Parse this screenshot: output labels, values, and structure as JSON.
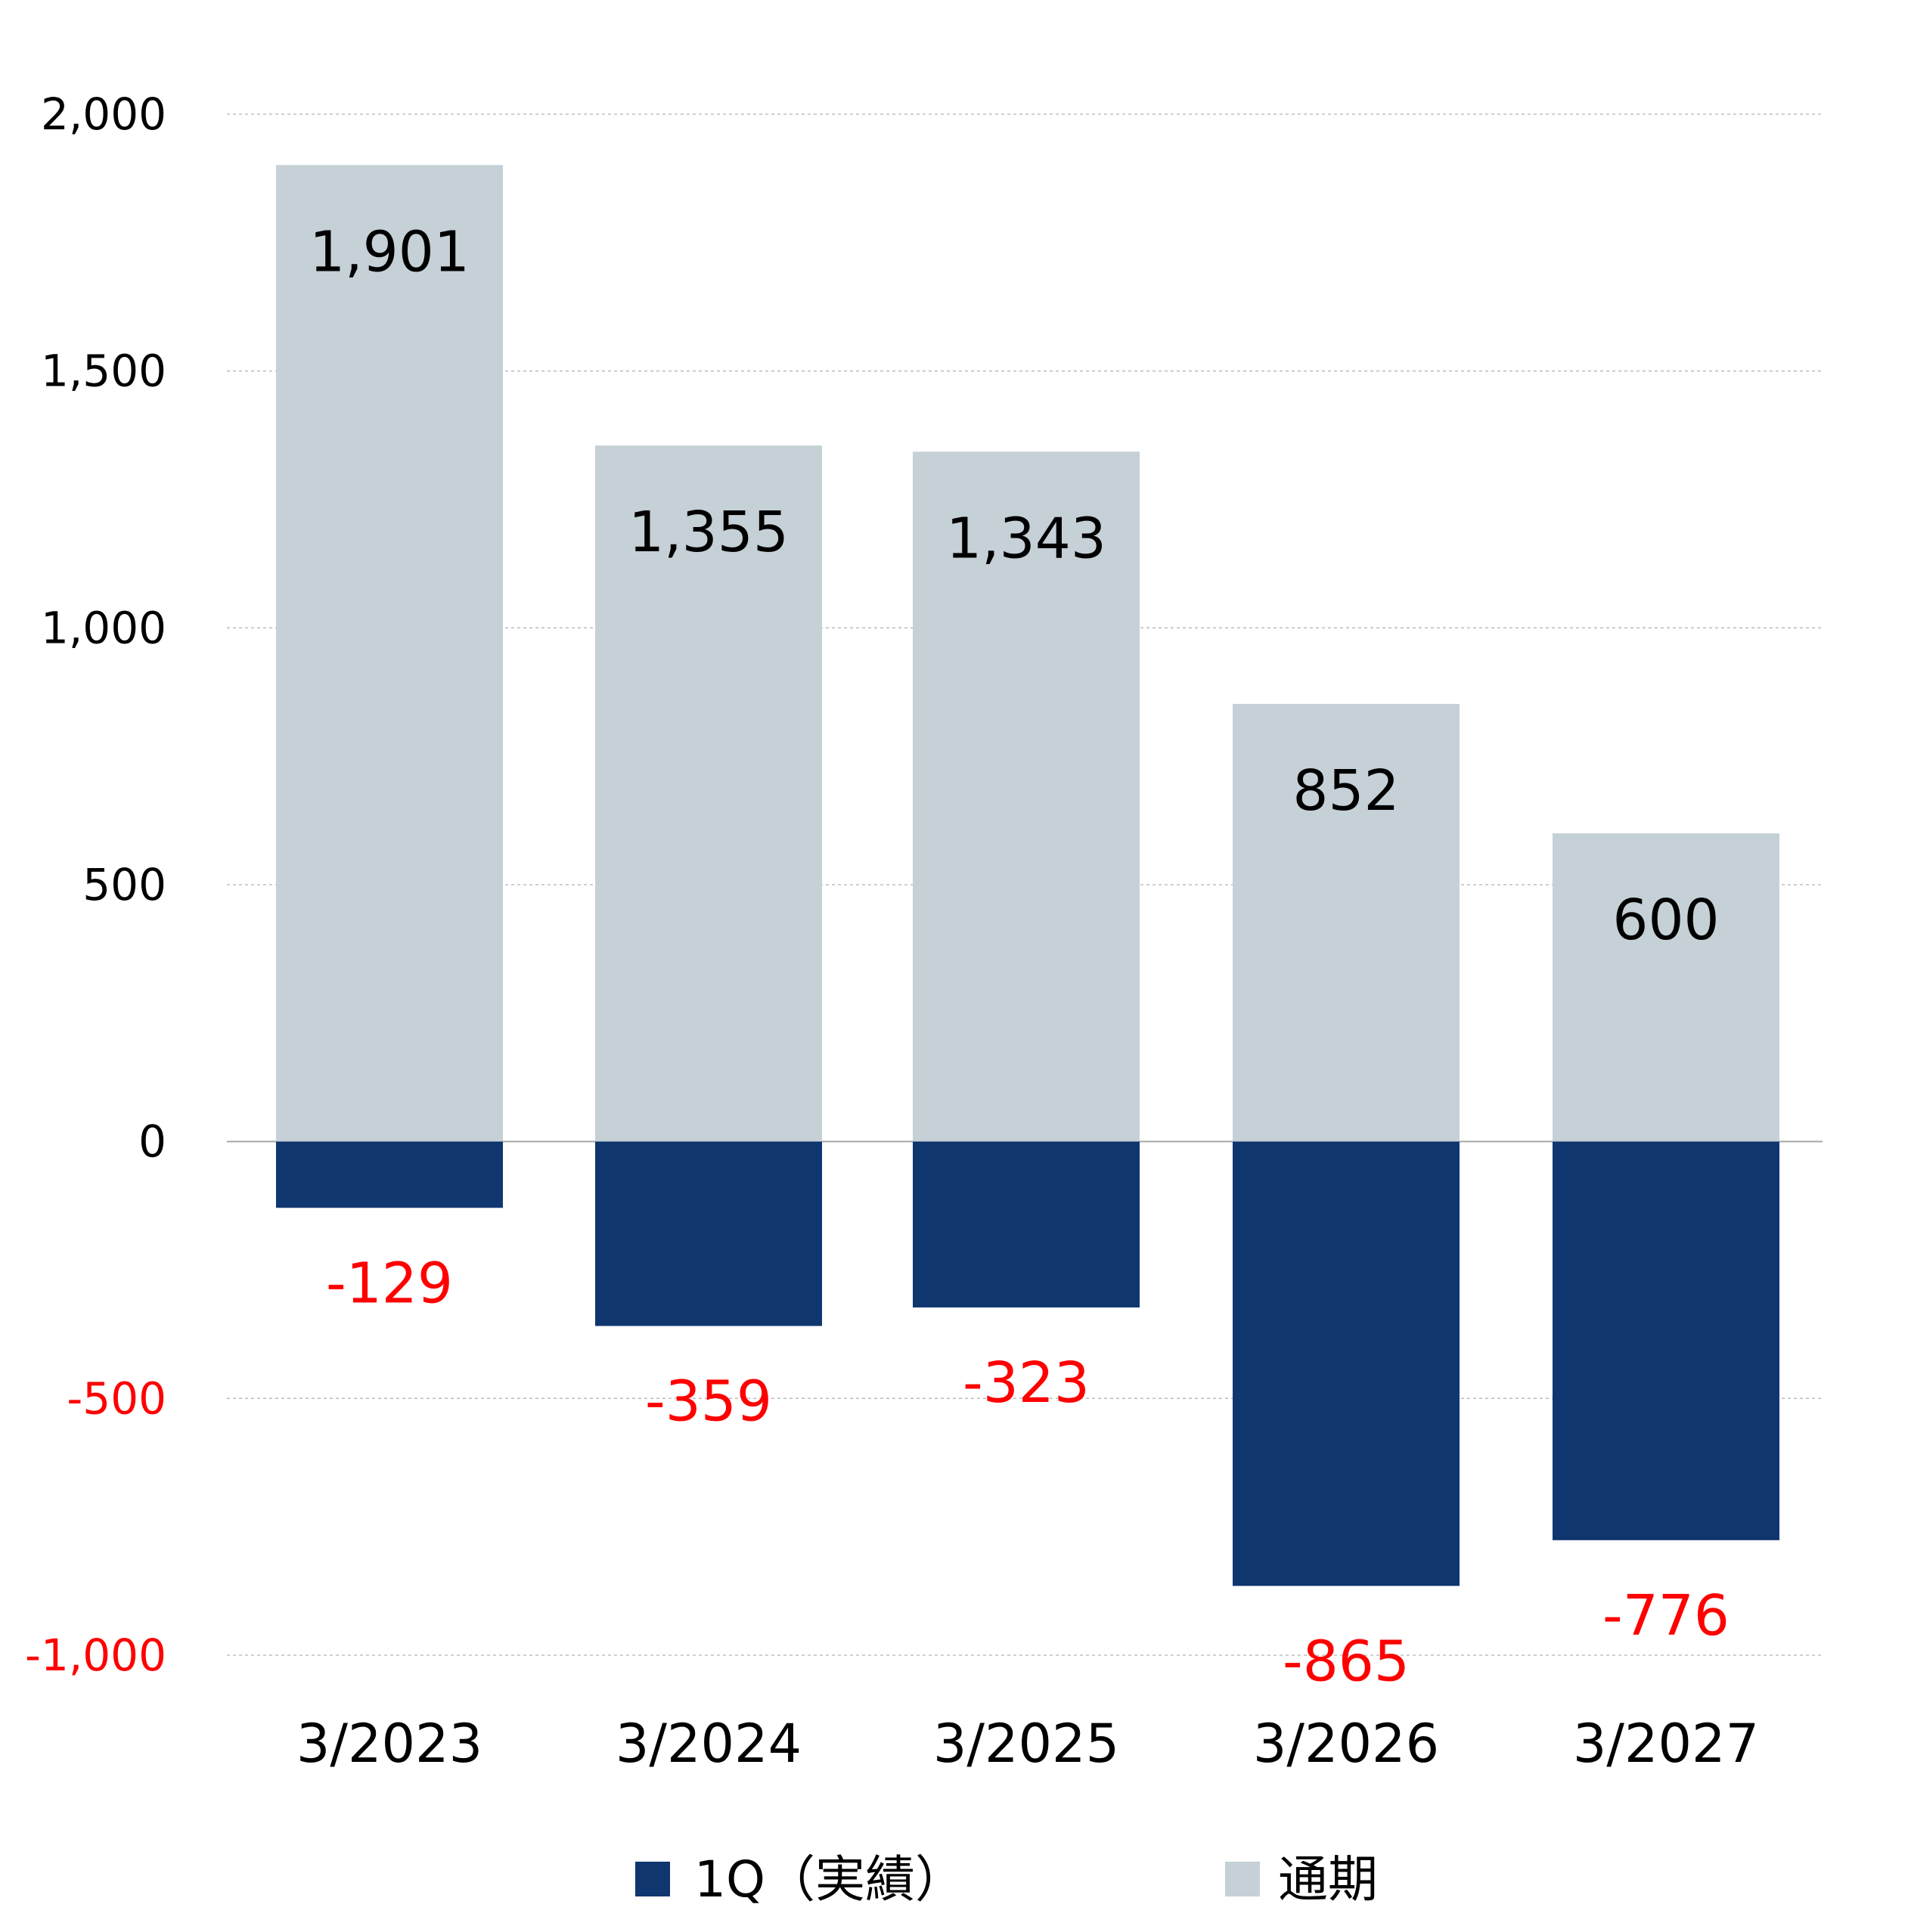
{
  "chart_data": {
    "type": "bar",
    "categories": [
      "3/2023",
      "3/2024",
      "3/2025",
      "3/2026",
      "3/2027"
    ],
    "series": [
      {
        "name": "1Q（実績）",
        "values": [
          -129,
          -359,
          -323,
          -865,
          -776
        ],
        "color": "#10366F",
        "label_color": "#FF0000"
      },
      {
        "name": "通期",
        "values": [
          1901,
          1355,
          1343,
          852,
          600
        ],
        "color": "#C5D0D7",
        "label_color": "#000000"
      }
    ],
    "value_labels": {
      "positive": [
        "1,901",
        "1,355",
        "1,343",
        "852",
        "600"
      ],
      "negative": [
        "-129",
        "-359",
        "-323",
        "-865",
        "-776"
      ]
    },
    "y_ticks": [
      {
        "value": 2000,
        "label": "2,000",
        "color": "#000000"
      },
      {
        "value": 1500,
        "label": "1,500",
        "color": "#000000"
      },
      {
        "value": 1000,
        "label": "1,000",
        "color": "#000000"
      },
      {
        "value": 500,
        "label": "500",
        "color": "#000000"
      },
      {
        "value": 0,
        "label": "0",
        "color": "#000000"
      },
      {
        "value": -500,
        "label": "-500",
        "color": "#FF0000"
      },
      {
        "value": -1000,
        "label": "-1,000",
        "color": "#FF0000"
      }
    ],
    "ylim": [
      -1000,
      2000
    ],
    "grid": true,
    "legend_position": "bottom",
    "title": "",
    "xlabel": "",
    "ylabel": ""
  }
}
